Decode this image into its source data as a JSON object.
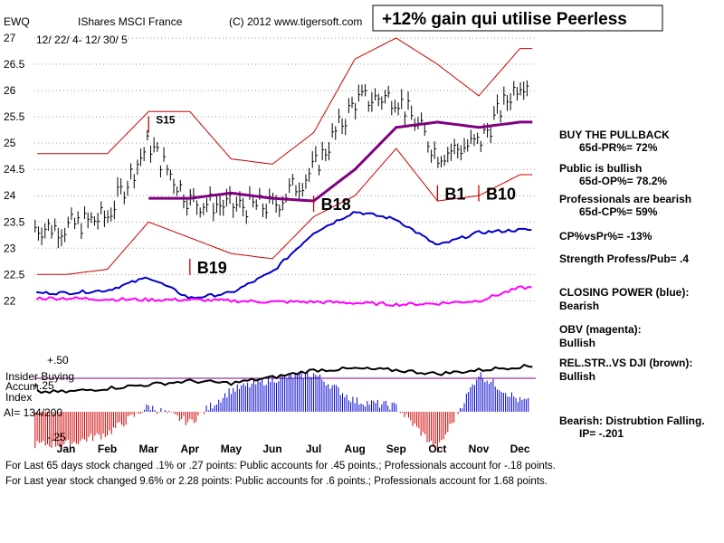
{
  "header": {
    "ticker": "EWQ",
    "name": "IShares MSCI France",
    "copyright": "(C) 2012 www.tigersoft.com",
    "banner": "+12% gain qui utilise Peerless",
    "date_range": "12/ 22/ 4- 12/ 30/ 5"
  },
  "colors": {
    "price": "#000000",
    "bands": "#cc0000",
    "moving_average": "#800080",
    "closing_power": "#0000cc",
    "obv": "#ff00ff",
    "accum_positive": "#0000cc",
    "accum_negative": "#cc0000"
  },
  "chart_data": {
    "type": "line",
    "title": "IShares MSCI France",
    "x": [
      "Jan",
      "Feb",
      "Mar",
      "Apr",
      "May",
      "Jun",
      "Jul",
      "Aug",
      "Sep",
      "Oct",
      "Nov",
      "Dec"
    ],
    "ylim": [
      21.8,
      27
    ],
    "y_ticks": [
      "27",
      "26.5",
      "26",
      "25.5",
      "25",
      "24.5",
      "24",
      "23.5",
      "23",
      "22.5",
      "22"
    ],
    "series": [
      {
        "name": "EWQ close (monthly approx.)",
        "values": [
          23.4,
          23.6,
          25.0,
          23.9,
          23.8,
          23.8,
          24.5,
          25.8,
          25.9,
          24.8,
          25.0,
          26.2
        ]
      },
      {
        "name": "Upper band",
        "values": [
          24.8,
          24.8,
          25.6,
          25.6,
          24.7,
          24.6,
          25.2,
          26.6,
          27.0,
          26.5,
          25.9,
          26.8
        ]
      },
      {
        "name": "Lower band",
        "values": [
          22.5,
          22.6,
          23.5,
          23.2,
          22.9,
          22.8,
          23.6,
          24.0,
          24.9,
          23.9,
          24.0,
          24.4
        ]
      },
      {
        "name": "65-day MA",
        "values": [
          null,
          null,
          null,
          23.95,
          24.05,
          23.95,
          23.9,
          24.5,
          25.3,
          25.4,
          25.3,
          25.4
        ]
      }
    ],
    "signals": [
      {
        "label": "S15",
        "month": "Mar",
        "price": 25.2
      },
      {
        "label": "B19",
        "month": "Apr",
        "price": 22.8
      },
      {
        "label": "B18",
        "month": "Jul",
        "price": 24.0
      },
      {
        "label": "B1",
        "month": "Oct",
        "price": 24.2
      },
      {
        "label": "B10",
        "month": "Nov",
        "price": 24.2
      }
    ],
    "lower_panel": {
      "labels": [
        "+.50",
        "+.25",
        "-.25"
      ],
      "insider_buying": "Insider Buying",
      "accum_label": "Accum",
      "index_label": "Index",
      "ai": "AI= 134/200"
    }
  },
  "side_panel": [
    {
      "title": "BUY THE PULLBACK",
      "detail": "65d-PR%= 72%"
    },
    {
      "title": "Public is bullish",
      "detail": "65d-OP%= 78.2%"
    },
    {
      "title": "Professionals are bearish",
      "detail": "65d-CP%= 59%"
    },
    {
      "title": "CP%vsPr%= -13%",
      "detail": ""
    },
    {
      "title": "Strength Profess/Pub= .4",
      "detail": ""
    },
    {
      "title": "CLOSING POWER (blue):",
      "detail": "Bearish"
    },
    {
      "title": "OBV (magenta):",
      "detail": "Bullish"
    },
    {
      "title": "REL.STR..VS DJI (brown):",
      "detail": "Bullish"
    },
    {
      "title": "Bearish: Distrubtion Falling.",
      "detail": "IP= -.201"
    }
  ],
  "footer": {
    "line1": "For Last 65 days stock changed  .1% or  .27 points:  Public accounts for  .45 points.;  Professionals account for -.18 points.",
    "line2": "For Last year stock changed  9.6% or  2.28 points:  Public accounts for  .6 points.;  Professionals account for  1.68 points."
  }
}
